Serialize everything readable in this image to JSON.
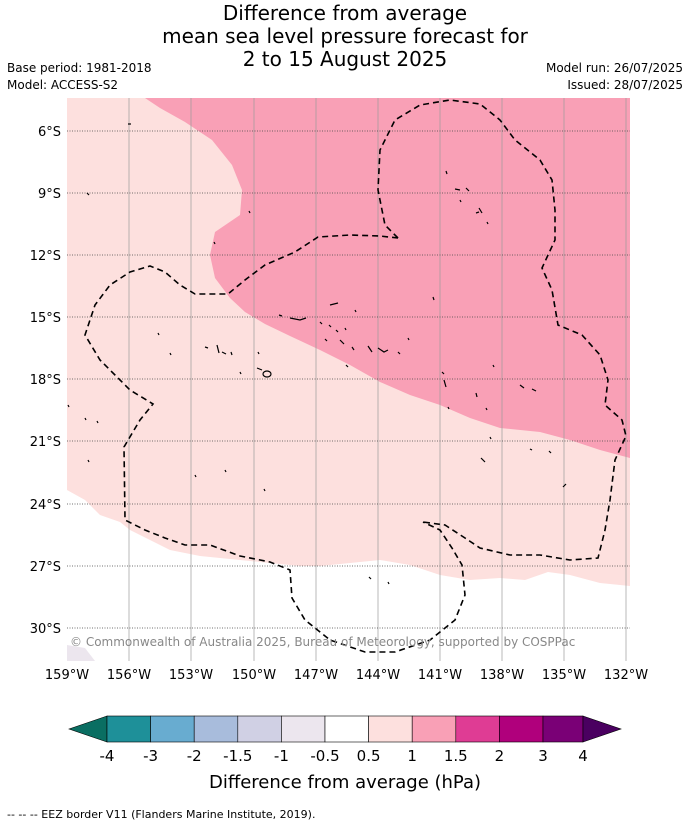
{
  "title": {
    "line1": "Difference from average",
    "line2": "mean sea level pressure forecast for",
    "line3": "2 to 15 August 2025"
  },
  "meta_left": {
    "base_period": "Base period: 1981-2018",
    "model": "Model: ACCESS-S2"
  },
  "meta_right": {
    "model_run": "Model run: 26/07/2025",
    "issued": "Issued: 28/07/2025"
  },
  "lat_labels": [
    "6°S",
    "9°S",
    "12°S",
    "15°S",
    "18°S",
    "21°S",
    "24°S",
    "27°S",
    "30°S"
  ],
  "lon_labels": [
    "159°W",
    "156°W",
    "153°W",
    "150°W",
    "147°W",
    "144°W",
    "141°W",
    "138°W",
    "135°W",
    "132°W"
  ],
  "copyright": "© Commonwealth of Australia 2025, Bureau of Meteorology, supported by COSPPac",
  "colorbar": {
    "labels": [
      "-4",
      "-3",
      "-2",
      "-1.5",
      "-1",
      "-0.5",
      "0.5",
      "1",
      "1.5",
      "2",
      "3",
      "4"
    ],
    "colors": [
      "#0a6e62",
      "#1e9099",
      "#68acd0",
      "#a8bcdc",
      "#d0d0e4",
      "#ece6ee",
      "#ffffff",
      "#fde0de",
      "#f9a0b6",
      "#df3c94",
      "#b0007c",
      "#7a0076",
      "#4a0060"
    ],
    "title": "Difference from average (hPa)"
  },
  "footer": "--  --  -- EEZ border V11 (Flanders Marine Institute, 2019)."
}
